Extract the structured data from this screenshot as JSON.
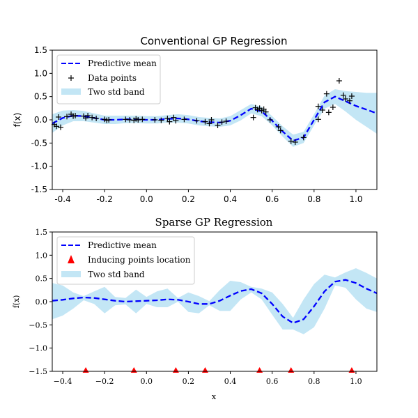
{
  "chart_data": [
    {
      "type": "line",
      "title": "Conventional GP Regression",
      "xlabel": "",
      "ylabel": "f(x)",
      "xlim": [
        -0.45,
        1.1
      ],
      "ylim": [
        -1.5,
        1.5
      ],
      "xticks": [
        "-0.4",
        "-0.2",
        "0.0",
        "0.2",
        "0.4",
        "0.6",
        "0.8",
        "1.0"
      ],
      "yticks": [
        "1.5",
        "1.0",
        "0.5",
        "0.0",
        "-0.5",
        "-1.0",
        "-1.5"
      ],
      "legend": {
        "position": "upper-left",
        "items": [
          "Predictive mean",
          "Data points",
          "Two std band"
        ]
      },
      "series": [
        {
          "name": "Predictive mean",
          "kind": "dashed-line",
          "color": "#0000ff",
          "x": [
            -0.45,
            -0.4,
            -0.35,
            -0.3,
            -0.25,
            -0.2,
            -0.15,
            -0.1,
            -0.05,
            0.0,
            0.05,
            0.1,
            0.15,
            0.2,
            0.25,
            0.3,
            0.35,
            0.4,
            0.45,
            0.5,
            0.55,
            0.6,
            0.65,
            0.7,
            0.75,
            0.8,
            0.85,
            0.9,
            0.95,
            1.0,
            1.05,
            1.1
          ],
          "y": [
            -0.08,
            0.04,
            0.09,
            0.08,
            0.04,
            0.0,
            0.0,
            0.01,
            0.01,
            0.0,
            0.0,
            0.02,
            0.03,
            0.01,
            -0.03,
            -0.05,
            -0.06,
            -0.02,
            0.1,
            0.24,
            0.18,
            -0.02,
            -0.25,
            -0.45,
            -0.38,
            0.0,
            0.38,
            0.5,
            0.4,
            0.3,
            0.22,
            0.14
          ]
        },
        {
          "name": "Two std band",
          "kind": "band",
          "color": "#87ceeb",
          "x": [
            -0.45,
            -0.4,
            -0.35,
            -0.3,
            -0.25,
            -0.2,
            -0.15,
            -0.1,
            -0.05,
            0.0,
            0.05,
            0.1,
            0.15,
            0.2,
            0.25,
            0.3,
            0.35,
            0.4,
            0.45,
            0.5,
            0.55,
            0.6,
            0.65,
            0.7,
            0.75,
            0.8,
            0.85,
            0.9,
            0.95,
            1.0,
            1.05,
            1.1
          ],
          "lower": [
            -0.28,
            -0.12,
            -0.03,
            -0.03,
            -0.06,
            -0.09,
            -0.09,
            -0.07,
            -0.07,
            -0.08,
            -0.08,
            -0.06,
            -0.06,
            -0.08,
            -0.12,
            -0.14,
            -0.15,
            -0.12,
            -0.01,
            0.14,
            0.08,
            -0.12,
            -0.36,
            -0.58,
            -0.5,
            -0.12,
            0.24,
            0.34,
            0.18,
            0.0,
            -0.15,
            -0.3
          ],
          "upper": [
            0.12,
            0.2,
            0.21,
            0.19,
            0.14,
            0.09,
            0.09,
            0.09,
            0.09,
            0.08,
            0.08,
            0.1,
            0.12,
            0.1,
            0.06,
            0.04,
            0.03,
            0.08,
            0.21,
            0.34,
            0.28,
            0.08,
            -0.14,
            -0.32,
            -0.26,
            0.12,
            0.52,
            0.66,
            0.62,
            0.6,
            0.58,
            0.58
          ]
        },
        {
          "name": "Data points",
          "kind": "markers",
          "marker": "+",
          "color": "#000000",
          "x": [
            -0.44,
            -0.43,
            -0.42,
            -0.41,
            -0.38,
            -0.36,
            -0.35,
            -0.34,
            -0.3,
            -0.29,
            -0.28,
            -0.26,
            -0.24,
            -0.2,
            -0.19,
            -0.18,
            -0.1,
            -0.08,
            -0.06,
            -0.05,
            -0.04,
            -0.02,
            0.04,
            0.07,
            0.1,
            0.11,
            0.13,
            0.14,
            0.18,
            0.24,
            0.28,
            0.3,
            0.31,
            0.34,
            0.36,
            0.38,
            0.51,
            0.52,
            0.53,
            0.54,
            0.55,
            0.56,
            0.57,
            0.59,
            0.63,
            0.64,
            0.69,
            0.71,
            0.75,
            0.82,
            0.82,
            0.84,
            0.86,
            0.87,
            0.89,
            0.92,
            0.94,
            0.95,
            0.97,
            0.98
          ],
          "y": [
            -0.1,
            -0.14,
            0.06,
            -0.16,
            0.07,
            0.12,
            0.08,
            0.09,
            0.08,
            0.04,
            0.09,
            0.05,
            0.03,
            0.01,
            -0.01,
            0.0,
            0.01,
            0.0,
            -0.01,
            0.02,
            0.0,
            0.01,
            0.0,
            -0.01,
            0.03,
            -0.04,
            0.05,
            -0.02,
            0.01,
            -0.02,
            -0.04,
            -0.08,
            0.0,
            -0.12,
            -0.05,
            -0.03,
            0.05,
            0.26,
            0.22,
            0.25,
            0.2,
            0.23,
            0.17,
            0.0,
            -0.15,
            -0.23,
            -0.46,
            -0.48,
            -0.38,
            0.01,
            0.29,
            0.21,
            0.56,
            0.16,
            0.27,
            0.84,
            0.53,
            0.45,
            0.41,
            0.51
          ]
        }
      ]
    },
    {
      "type": "line",
      "title": "Sparse GP Regression",
      "xlabel": "x",
      "ylabel": "f(x)",
      "xlim": [
        -0.45,
        1.1
      ],
      "ylim": [
        -1.5,
        1.5
      ],
      "xticks": [
        "−0.4",
        "−0.2",
        "0.0",
        "0.2",
        "0.4",
        "0.6",
        "0.8",
        "1.0"
      ],
      "yticks": [
        "1.5",
        "1.0",
        "0.5",
        "0.0",
        "−0.5",
        "−1.0",
        "−1.5"
      ],
      "legend": {
        "position": "upper-left",
        "items": [
          "Predictive mean",
          "Inducing points location",
          "Two std band"
        ]
      },
      "series": [
        {
          "name": "Predictive mean",
          "kind": "dashed-line",
          "color": "#0000ff",
          "x": [
            -0.45,
            -0.4,
            -0.35,
            -0.3,
            -0.25,
            -0.2,
            -0.15,
            -0.1,
            -0.05,
            0.0,
            0.05,
            0.1,
            0.15,
            0.2,
            0.25,
            0.3,
            0.35,
            0.4,
            0.45,
            0.5,
            0.55,
            0.6,
            0.65,
            0.7,
            0.75,
            0.8,
            0.85,
            0.9,
            0.95,
            1.0,
            1.05,
            1.1
          ],
          "y": [
            0.02,
            0.04,
            0.07,
            0.09,
            0.08,
            0.05,
            0.02,
            0.0,
            0.01,
            0.02,
            0.03,
            0.05,
            0.04,
            0.0,
            -0.05,
            -0.05,
            0.02,
            0.13,
            0.23,
            0.27,
            0.18,
            -0.05,
            -0.32,
            -0.46,
            -0.38,
            -0.1,
            0.22,
            0.43,
            0.47,
            0.4,
            0.28,
            0.18
          ]
        },
        {
          "name": "Two std band",
          "kind": "band",
          "color": "#87ceeb",
          "x": [
            -0.45,
            -0.4,
            -0.35,
            -0.3,
            -0.25,
            -0.2,
            -0.15,
            -0.1,
            -0.05,
            0.0,
            0.05,
            0.1,
            0.15,
            0.2,
            0.25,
            0.3,
            0.35,
            0.4,
            0.45,
            0.5,
            0.55,
            0.6,
            0.65,
            0.7,
            0.75,
            0.8,
            0.85,
            0.9,
            0.95,
            1.0,
            1.05,
            1.1
          ],
          "lower": [
            -0.38,
            -0.3,
            -0.15,
            0.03,
            -0.05,
            -0.25,
            -0.08,
            -0.06,
            -0.25,
            -0.05,
            -0.12,
            -0.12,
            0.0,
            -0.22,
            -0.25,
            -0.08,
            -0.2,
            -0.2,
            0.05,
            0.2,
            0.05,
            -0.28,
            -0.6,
            -0.6,
            -0.7,
            -0.55,
            -0.15,
            0.35,
            0.3,
            0.05,
            -0.15,
            -0.22
          ],
          "upper": [
            0.4,
            0.35,
            0.2,
            0.12,
            0.22,
            0.32,
            0.1,
            0.08,
            0.26,
            0.1,
            0.22,
            0.28,
            0.08,
            0.2,
            0.12,
            0.01,
            0.25,
            0.45,
            0.42,
            0.32,
            0.28,
            0.2,
            -0.05,
            -0.35,
            0.05,
            0.38,
            0.58,
            0.52,
            0.63,
            0.72,
            0.62,
            0.5
          ]
        },
        {
          "name": "Inducing points location",
          "kind": "markers",
          "marker": "triangle",
          "color": "#ff0000",
          "x": [
            -0.29,
            -0.06,
            0.14,
            0.28,
            0.54,
            0.69,
            0.98
          ],
          "y": [
            -1.5,
            -1.5,
            -1.5,
            -1.5,
            -1.5,
            -1.5,
            -1.5
          ]
        }
      ]
    }
  ]
}
